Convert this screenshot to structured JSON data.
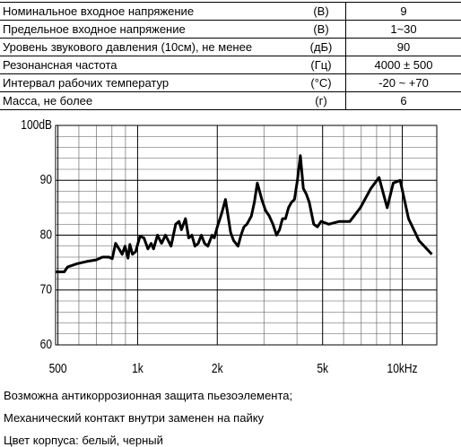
{
  "table": {
    "rows": [
      [
        "Номинальное входное напряжение",
        "(В)",
        "9"
      ],
      [
        "Предельное входное напряжение",
        "(В)",
        "1~30"
      ],
      [
        "Уровень звукового давления (10см), не менее",
        "(дБ)",
        "90"
      ],
      [
        "Резонансная частота",
        "(Гц)",
        "4000 ± 500"
      ],
      [
        "Интервал рабочих температур",
        "(°С)",
        "-20 ~ +70"
      ],
      [
        "Масса, не более",
        "(г)",
        "6"
      ]
    ]
  },
  "chart_data": {
    "type": "line",
    "log_x": true,
    "grid": true,
    "color": "#000000",
    "xlim": [
      490,
      13500
    ],
    "ylim": [
      60,
      100
    ],
    "xticks": [
      500,
      {
        "value": 1000,
        "label": "1k"
      },
      {
        "value": 2000,
        "label": "2k"
      },
      {
        "value": 5000,
        "label": "5k"
      },
      {
        "value": 10000,
        "label": "10kHz"
      }
    ],
    "x_minor_ticks": [
      600,
      700,
      800,
      900,
      3000,
      4000,
      6000,
      7000,
      8000,
      9000
    ],
    "yticks": [
      60,
      70,
      80,
      90,
      {
        "value": 100,
        "label": "100dB"
      }
    ],
    "y_minor_ticks": [
      62,
      64,
      66,
      68,
      72,
      74,
      76,
      78,
      82,
      84,
      86,
      88,
      92,
      94,
      96,
      98
    ],
    "x": [
      492,
      528,
      544,
      590,
      642,
      697,
      737,
      780,
      802,
      826,
      851,
      874,
      896,
      920,
      935,
      956,
      983,
      1021,
      1057,
      1094,
      1125,
      1149,
      1189,
      1231,
      1274,
      1338,
      1393,
      1434,
      1464,
      1516,
      1560,
      1603,
      1647,
      1694,
      1741,
      1791,
      1842,
      1912,
      1948,
      2000,
      2079,
      2147,
      2189,
      2246,
      2305,
      2396,
      2459,
      2523,
      2589,
      2691,
      2762,
      2834,
      2946,
      3042,
      3142,
      3245,
      3351,
      3439,
      3529,
      3621,
      3716,
      3813,
      3913,
      4015,
      4120,
      4228,
      4339,
      4452,
      4628,
      4779,
      4935,
      5277,
      5784,
      6338,
      6944,
      7608,
      8167,
      8767,
      9245,
      9819,
      10562,
      11571,
      12930
    ],
    "values": [
      73.3,
      73.3,
      74.2,
      74.8,
      75.2,
      75.5,
      76,
      76,
      75.7,
      78.5,
      77.5,
      76.5,
      78,
      75.8,
      78.3,
      76.5,
      77,
      79.8,
      79.5,
      77.5,
      78.5,
      77.5,
      80,
      78.5,
      80,
      78,
      82,
      82.5,
      81,
      83,
      79.5,
      80,
      78,
      78.5,
      80,
      78.5,
      78,
      80,
      79.5,
      81.5,
      84,
      86.5,
      84,
      80.5,
      79,
      78,
      80,
      81.5,
      82,
      83.5,
      86,
      89.5,
      86.5,
      84.5,
      83.5,
      82,
      80,
      81,
      83,
      83,
      85,
      86,
      86.5,
      90,
      94.5,
      88.5,
      87.5,
      86,
      82,
      81.5,
      82.5,
      82,
      82.5,
      82.5,
      85,
      88.5,
      90.5,
      85,
      89.5,
      90,
      83,
      79,
      76.5
    ]
  },
  "notes": [
    "Возможна антикоррозионная защита пьезоэлемента;",
    "Механический контакт внутри заменен на пайку",
    "Цвет корпуса: белый, черный"
  ]
}
